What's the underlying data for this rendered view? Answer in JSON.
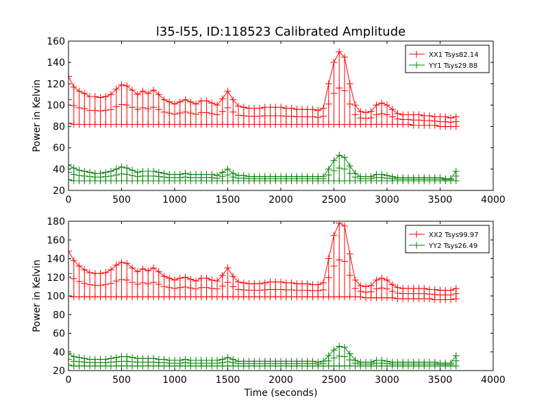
{
  "title": "l35-l55, ID:118523 Calibrated Amplitude",
  "colors": {
    "red": "#ff0000",
    "green": "#008000"
  },
  "chart_data": [
    {
      "type": "line",
      "marker": "plus",
      "xlabel": "",
      "ylabel": "Power in Kelvin",
      "xlim": [
        0,
        4000
      ],
      "ylim": [
        20,
        160
      ],
      "xticks": [
        0,
        500,
        1000,
        1500,
        2000,
        2500,
        3000,
        3500,
        4000
      ],
      "yticks": [
        20,
        40,
        60,
        80,
        100,
        120,
        140,
        160
      ],
      "grid": false,
      "legend": "top-right",
      "series": [
        {
          "name": "XX1 Tsys82.14",
          "color": "#ff0000",
          "x": [
            0,
            50,
            100,
            150,
            200,
            250,
            300,
            350,
            400,
            450,
            500,
            550,
            600,
            650,
            700,
            750,
            800,
            850,
            900,
            950,
            1000,
            1050,
            1100,
            1150,
            1200,
            1250,
            1300,
            1350,
            1400,
            1450,
            1500,
            1550,
            1600,
            1650,
            1700,
            1750,
            1800,
            1850,
            1900,
            1950,
            2000,
            2050,
            2100,
            2150,
            2200,
            2250,
            2300,
            2350,
            2400,
            2450,
            2500,
            2550,
            2600,
            2650,
            2700,
            2750,
            2800,
            2850,
            2900,
            2950,
            3000,
            3050,
            3100,
            3150,
            3200,
            3250,
            3300,
            3350,
            3400,
            3450,
            3500,
            3550,
            3600,
            3650
          ],
          "low": [
            83,
            82,
            82,
            82,
            82,
            82,
            82,
            82,
            82,
            82,
            82,
            82,
            82,
            82,
            82,
            82,
            82,
            82,
            82,
            82,
            82,
            82,
            82,
            82,
            82,
            82,
            82,
            82,
            82,
            82,
            82,
            82,
            82,
            82,
            82,
            82,
            82,
            82,
            82,
            82,
            82,
            82,
            82,
            82,
            82,
            82,
            82,
            82,
            82,
            82,
            82,
            82,
            82,
            82,
            82,
            82,
            82,
            82,
            82,
            82,
            82,
            82,
            82,
            82,
            82,
            81,
            81,
            81,
            81,
            81,
            80,
            80,
            80,
            80
          ],
          "high": [
            127,
            117,
            113,
            111,
            108,
            108,
            107,
            108,
            110,
            115,
            119,
            118,
            114,
            110,
            113,
            111,
            114,
            110,
            105,
            103,
            101,
            103,
            105,
            103,
            101,
            104,
            104,
            102,
            100,
            106,
            113,
            105,
            99,
            98,
            97,
            97,
            97,
            98,
            98,
            98,
            98,
            97,
            97,
            96,
            96,
            96,
            96,
            95,
            97,
            120,
            140,
            150,
            145,
            120,
            100,
            94,
            93,
            94,
            100,
            102,
            100,
            96,
            92,
            91,
            91,
            91,
            91,
            90,
            90,
            89,
            89,
            89,
            88,
            89
          ]
        },
        {
          "name": "YY1 Tsys29.88",
          "color": "#008000",
          "x": [
            0,
            50,
            100,
            150,
            200,
            250,
            300,
            350,
            400,
            450,
            500,
            550,
            600,
            650,
            700,
            750,
            800,
            850,
            900,
            950,
            1000,
            1050,
            1100,
            1150,
            1200,
            1250,
            1300,
            1350,
            1400,
            1450,
            1500,
            1550,
            1600,
            1650,
            1700,
            1750,
            1800,
            1850,
            1900,
            1950,
            2000,
            2050,
            2100,
            2150,
            2200,
            2250,
            2300,
            2350,
            2400,
            2450,
            2500,
            2550,
            2600,
            2650,
            2700,
            2750,
            2800,
            2850,
            2900,
            2950,
            3000,
            3050,
            3100,
            3150,
            3200,
            3250,
            3300,
            3350,
            3400,
            3450,
            3500,
            3550,
            3600,
            3650
          ],
          "low": [
            30,
            29,
            29,
            29,
            29,
            29,
            29,
            29,
            29,
            29,
            29,
            29,
            29,
            29,
            29,
            29,
            29,
            29,
            29,
            29,
            29,
            29,
            29,
            29,
            29,
            29,
            29,
            29,
            29,
            29,
            29,
            29,
            29,
            29,
            29,
            29,
            29,
            29,
            29,
            29,
            29,
            29,
            29,
            29,
            29,
            29,
            29,
            29,
            29,
            29,
            29,
            29,
            29,
            29,
            29,
            29,
            29,
            29,
            29,
            29,
            29,
            29,
            29,
            29,
            29,
            29,
            29,
            29,
            29,
            29,
            29,
            29,
            29,
            29
          ],
          "high": [
            44,
            41,
            39,
            38,
            37,
            36,
            36,
            37,
            38,
            40,
            42,
            41,
            39,
            37,
            38,
            38,
            38,
            37,
            36,
            35,
            35,
            35,
            36,
            35,
            35,
            35,
            35,
            35,
            34,
            37,
            40,
            36,
            34,
            34,
            33,
            33,
            33,
            33,
            33,
            33,
            33,
            33,
            33,
            33,
            33,
            33,
            33,
            33,
            33,
            40,
            48,
            53,
            51,
            43,
            36,
            33,
            33,
            33,
            35,
            35,
            34,
            33,
            32,
            32,
            32,
            32,
            32,
            32,
            32,
            32,
            32,
            31,
            31,
            38
          ]
        }
      ]
    },
    {
      "type": "line",
      "marker": "plus",
      "xlabel": "Time (seconds)",
      "ylabel": "Power in Kelvin",
      "xlim": [
        0,
        4000
      ],
      "ylim": [
        20,
        180
      ],
      "xticks": [
        0,
        500,
        1000,
        1500,
        2000,
        2500,
        3000,
        3500,
        4000
      ],
      "yticks": [
        20,
        40,
        60,
        80,
        100,
        120,
        140,
        160,
        180
      ],
      "grid": false,
      "legend": "top-right",
      "series": [
        {
          "name": "XX2 Tsys99.97",
          "color": "#ff0000",
          "x": [
            0,
            50,
            100,
            150,
            200,
            250,
            300,
            350,
            400,
            450,
            500,
            550,
            600,
            650,
            700,
            750,
            800,
            850,
            900,
            950,
            1000,
            1050,
            1100,
            1150,
            1200,
            1250,
            1300,
            1350,
            1400,
            1450,
            1500,
            1550,
            1600,
            1650,
            1700,
            1750,
            1800,
            1850,
            1900,
            1950,
            2000,
            2050,
            2100,
            2150,
            2200,
            2250,
            2300,
            2350,
            2400,
            2450,
            2500,
            2550,
            2600,
            2650,
            2700,
            2750,
            2800,
            2850,
            2900,
            2950,
            3000,
            3050,
            3100,
            3150,
            3200,
            3250,
            3300,
            3350,
            3400,
            3450,
            3500,
            3550,
            3600,
            3650
          ],
          "low": [
            100,
            99,
            99,
            99,
            99,
            99,
            99,
            99,
            99,
            99,
            99,
            99,
            99,
            99,
            99,
            99,
            99,
            99,
            99,
            99,
            99,
            99,
            99,
            99,
            99,
            99,
            99,
            99,
            99,
            99,
            99,
            99,
            99,
            99,
            99,
            99,
            99,
            99,
            99,
            99,
            99,
            99,
            99,
            99,
            99,
            99,
            99,
            99,
            99,
            99,
            99,
            99,
            99,
            99,
            99,
            99,
            98,
            98,
            98,
            98,
            98,
            98,
            97,
            97,
            97,
            97,
            97,
            97,
            97,
            96,
            96,
            96,
            96,
            97
          ],
          "high": [
            148,
            138,
            132,
            128,
            125,
            124,
            124,
            125,
            128,
            133,
            136,
            135,
            130,
            126,
            129,
            127,
            130,
            126,
            121,
            119,
            117,
            119,
            120,
            118,
            116,
            119,
            119,
            117,
            116,
            122,
            130,
            121,
            115,
            114,
            113,
            113,
            113,
            114,
            115,
            115,
            115,
            114,
            114,
            113,
            113,
            113,
            112,
            112,
            114,
            140,
            165,
            178,
            175,
            145,
            117,
            111,
            110,
            111,
            117,
            119,
            117,
            112,
            109,
            108,
            108,
            108,
            108,
            108,
            107,
            107,
            106,
            106,
            106,
            108
          ]
        },
        {
          "name": "YY2 Tsys26.49",
          "color": "#008000",
          "x": [
            0,
            50,
            100,
            150,
            200,
            250,
            300,
            350,
            400,
            450,
            500,
            550,
            600,
            650,
            700,
            750,
            800,
            850,
            900,
            950,
            1000,
            1050,
            1100,
            1150,
            1200,
            1250,
            1300,
            1350,
            1400,
            1450,
            1500,
            1550,
            1600,
            1650,
            1700,
            1750,
            1800,
            1850,
            1900,
            1950,
            2000,
            2050,
            2100,
            2150,
            2200,
            2250,
            2300,
            2350,
            2400,
            2450,
            2500,
            2550,
            2600,
            2650,
            2700,
            2750,
            2800,
            2850,
            2900,
            2950,
            3000,
            3050,
            3100,
            3150,
            3200,
            3250,
            3300,
            3350,
            3400,
            3450,
            3500,
            3550,
            3600,
            3650
          ],
          "low": [
            26,
            25,
            25,
            25,
            25,
            25,
            25,
            25,
            25,
            25,
            25,
            25,
            25,
            25,
            25,
            25,
            25,
            25,
            25,
            25,
            25,
            25,
            25,
            25,
            25,
            25,
            25,
            25,
            25,
            25,
            25,
            25,
            25,
            25,
            25,
            25,
            25,
            25,
            25,
            25,
            25,
            25,
            25,
            25,
            25,
            25,
            25,
            25,
            25,
            25,
            25,
            25,
            25,
            25,
            25,
            25,
            25,
            25,
            25,
            25,
            25,
            25,
            25,
            25,
            25,
            25,
            25,
            25,
            25,
            25,
            25,
            25,
            25,
            25
          ],
          "high": [
            38,
            35,
            34,
            33,
            32,
            32,
            32,
            32,
            33,
            34,
            35,
            35,
            34,
            33,
            33,
            33,
            33,
            32,
            32,
            31,
            31,
            31,
            32,
            31,
            31,
            31,
            31,
            31,
            31,
            32,
            34,
            32,
            30,
            30,
            30,
            30,
            30,
            30,
            30,
            30,
            30,
            30,
            30,
            30,
            30,
            30,
            30,
            29,
            30,
            36,
            42,
            46,
            45,
            38,
            31,
            29,
            29,
            29,
            31,
            31,
            30,
            29,
            29,
            29,
            29,
            29,
            29,
            29,
            29,
            29,
            28,
            28,
            28,
            36
          ]
        }
      ]
    }
  ]
}
